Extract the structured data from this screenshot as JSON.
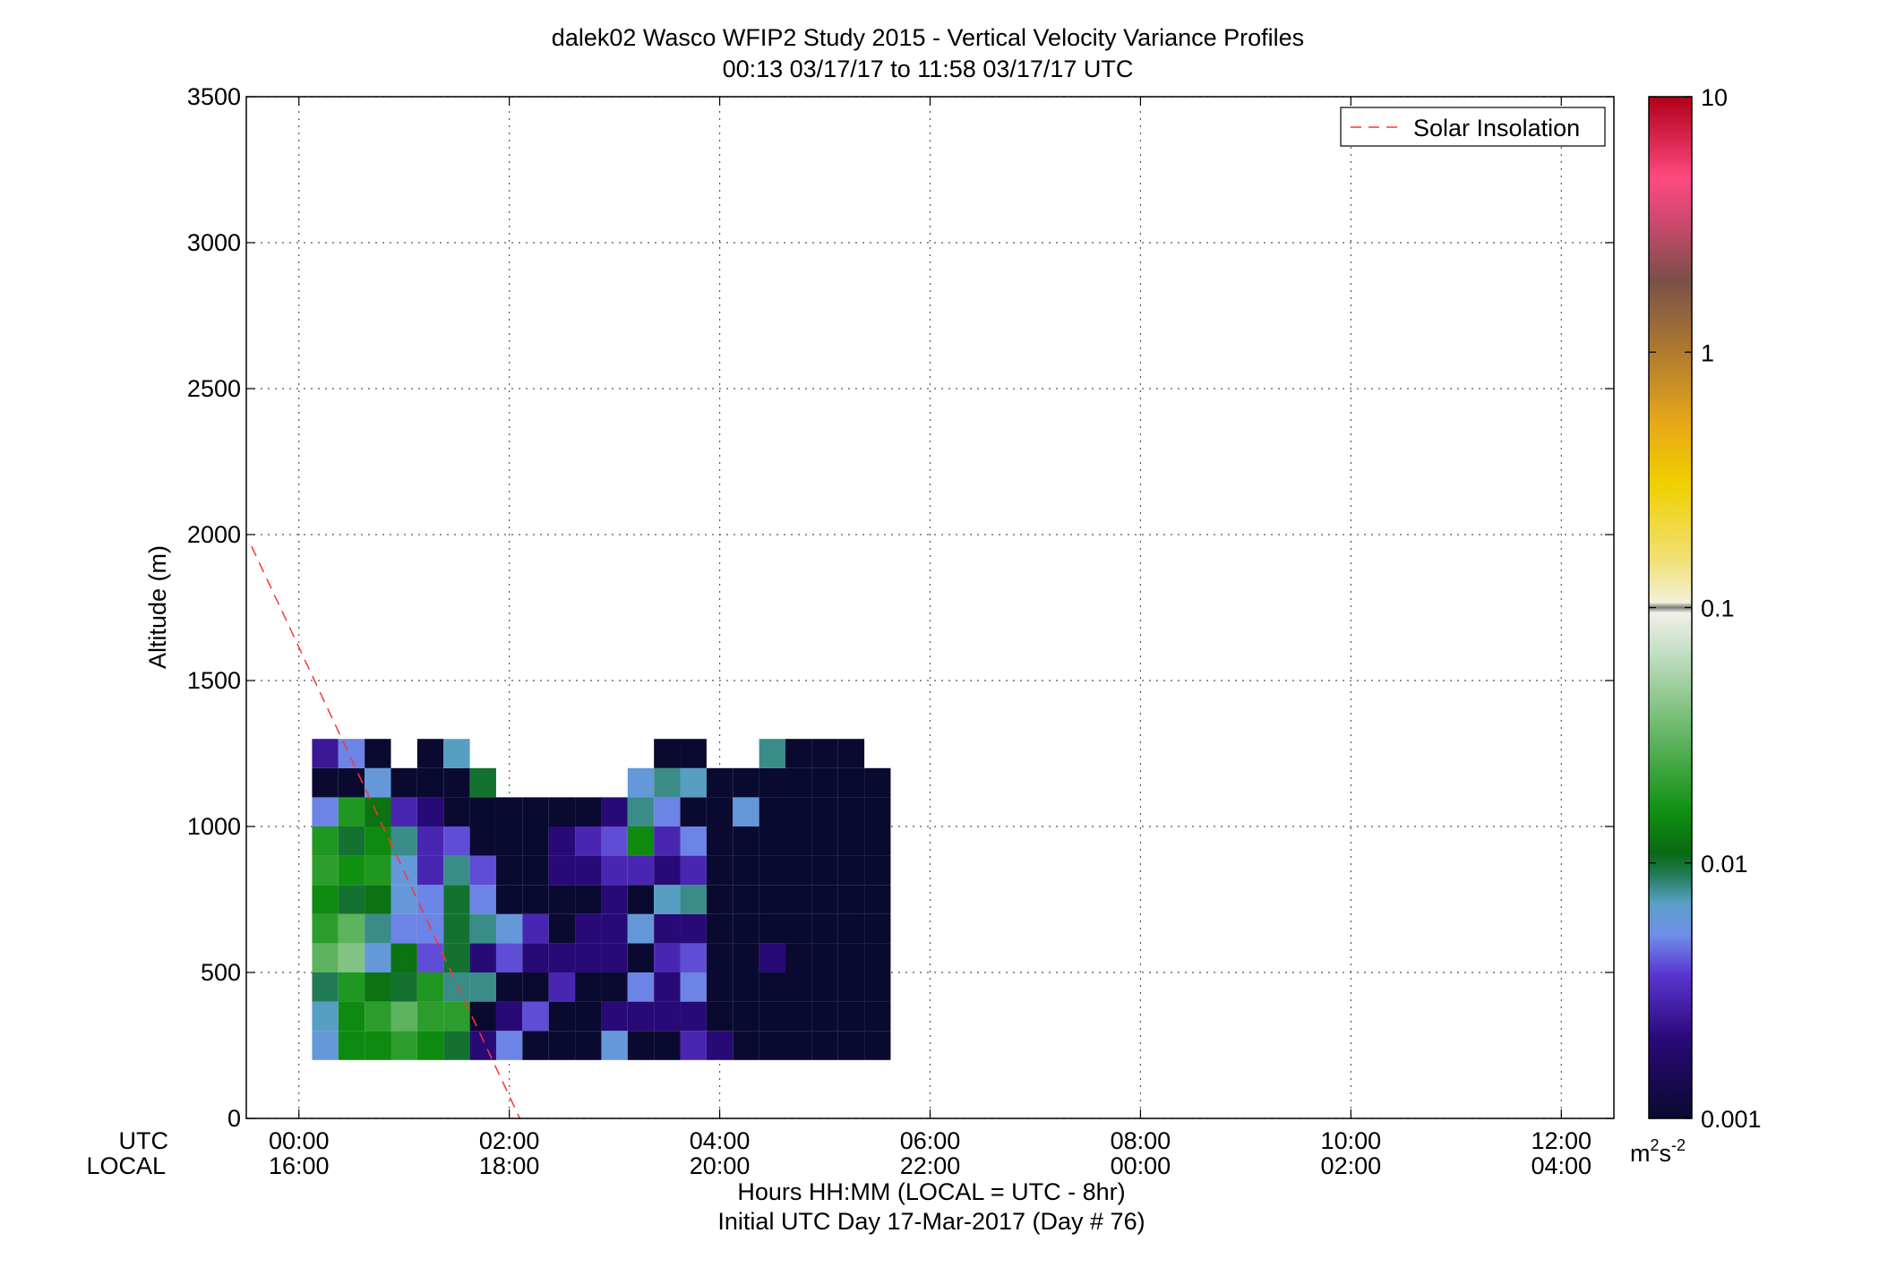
{
  "chart_data": {
    "type": "heatmap",
    "title": "dalek02 Wasco WFIP2 Study 2015 - Vertical Velocity Variance Profiles",
    "subtitle": "00:13 03/17/17 to 11:58 03/17/17  UTC",
    "ylabel": "Altitude (m)",
    "xlabel": "Hours HH:MM  (LOCAL = UTC - 8hr)",
    "xlabel2": "Initial UTC Day 17-Mar-2017 (Day # 76)",
    "row_label_utc": "UTC",
    "row_label_local": "LOCAL",
    "xlim_hours_utc": [
      -0.5,
      12.5
    ],
    "ylim": [
      0,
      3500
    ],
    "grid": true,
    "x_ticks_utc": [
      "00:00",
      "02:00",
      "04:00",
      "06:00",
      "08:00",
      "10:00",
      "12:00"
    ],
    "x_ticks_local": [
      "16:00",
      "18:00",
      "20:00",
      "22:00",
      "00:00",
      "02:00",
      "04:00"
    ],
    "x_tick_hours": [
      0,
      2,
      4,
      6,
      8,
      10,
      12
    ],
    "y_ticks": [
      0,
      500,
      1000,
      1500,
      2000,
      2500,
      3000,
      3500
    ],
    "colorbar": {
      "scale": "log",
      "range": [
        0.001,
        10
      ],
      "ticks": [
        "0.001",
        "0.01",
        "0.1",
        "1",
        "10"
      ],
      "tick_values": [
        0.001,
        0.01,
        0.1,
        1,
        10
      ],
      "unit_base": "m",
      "unit_exp1": "2",
      "unit_mid": "s",
      "unit_exp2": "-2"
    },
    "legend": {
      "position": "top-right",
      "entries": [
        {
          "label": "Solar Insolation",
          "color": "#ff3333",
          "style": "dashed"
        }
      ]
    },
    "solar_insolation_line": [
      [
        -0.45,
        1960
      ],
      [
        2.1,
        0
      ]
    ],
    "time_step_hours": 0.25,
    "gate_m": 100,
    "start_hour": 0.25,
    "start_alt": 250,
    "profiles_grid_note": "rows[i] lists values for altitudes 250,350,...; 0 = no data",
    "columns": [
      [
        0.006,
        0.007,
        0.009,
        0.03,
        0.02,
        0.015,
        0.02,
        0.018,
        0.005,
        0.001,
        0.0025
      ],
      [
        0.015,
        0.015,
        0.018,
        0.04,
        0.03,
        0.01,
        0.016,
        0.01,
        0.018,
        0.001,
        0.005
      ],
      [
        0.015,
        0.02,
        0.012,
        0.006,
        0.008,
        0.012,
        0.018,
        0.015,
        0.012,
        0.006,
        0.001
      ],
      [
        0.02,
        0.03,
        0.01,
        0.012,
        0.005,
        0.006,
        0.006,
        0.008,
        0.003,
        0.001,
        0
      ],
      [
        0.015,
        0.02,
        0.018,
        0.004,
        0.005,
        0.005,
        0.003,
        0.003,
        0.002,
        0.001,
        0.001
      ],
      [
        0.01,
        0.02,
        0.008,
        0.01,
        0.01,
        0.01,
        0.008,
        0.004,
        0.001,
        0.001,
        0.007
      ],
      [
        0.002,
        0.001,
        0.008,
        0.002,
        0.008,
        0.005,
        0.004,
        0.001,
        0.001,
        0.01,
        0
      ],
      [
        0.005,
        0.002,
        0.001,
        0.004,
        0.006,
        0.001,
        0.001,
        0.001,
        0.001,
        0,
        0
      ],
      [
        0.001,
        0.004,
        0.001,
        0.002,
        0.003,
        0.001,
        0.001,
        0.001,
        0.001,
        0,
        0
      ],
      [
        0.001,
        0.001,
        0.003,
        0.002,
        0.001,
        0.001,
        0.002,
        0.002,
        0.001,
        0,
        0
      ],
      [
        0.001,
        0.001,
        0.001,
        0.002,
        0.002,
        0.001,
        0.002,
        0.003,
        0.001,
        0,
        0
      ],
      [
        0.006,
        0.002,
        0.001,
        0.002,
        0.002,
        0.002,
        0.003,
        0.004,
        0.002,
        0,
        0
      ],
      [
        0.001,
        0.002,
        0.005,
        0.001,
        0.006,
        0.001,
        0.003,
        0.015,
        0.008,
        0.006,
        0
      ],
      [
        0.001,
        0.002,
        0.002,
        0.003,
        0.002,
        0.007,
        0.002,
        0.003,
        0.005,
        0.008,
        0.001
      ],
      [
        0.003,
        0.002,
        0.005,
        0.004,
        0.002,
        0.008,
        0.003,
        0.005,
        0.001,
        0.007,
        0.001
      ],
      [
        0.002,
        0.001,
        0.001,
        0.001,
        0.001,
        0.001,
        0.001,
        0.001,
        0.001,
        0.001,
        0
      ],
      [
        0.001,
        0.001,
        0.001,
        0.001,
        0.001,
        0.001,
        0.001,
        0.001,
        0.006,
        0.001,
        0
      ],
      [
        0.001,
        0.001,
        0.001,
        0.002,
        0.001,
        0.001,
        0.001,
        0.001,
        0.001,
        0.001,
        0.008
      ],
      [
        0.001,
        0.001,
        0.001,
        0.001,
        0.001,
        0.001,
        0.001,
        0.001,
        0.001,
        0.001,
        0.001
      ],
      [
        0.001,
        0.001,
        0.001,
        0.001,
        0.001,
        0.001,
        0.001,
        0.001,
        0.001,
        0.001,
        0.001
      ],
      [
        0.001,
        0.001,
        0.001,
        0.001,
        0.001,
        0.001,
        0.001,
        0.001,
        0.001,
        0.001,
        0.001
      ],
      [
        0.001,
        0.001,
        0.001,
        0.001,
        0.001,
        0.001,
        0.001,
        0.001,
        0.001,
        0.001,
        0
      ]
    ]
  }
}
